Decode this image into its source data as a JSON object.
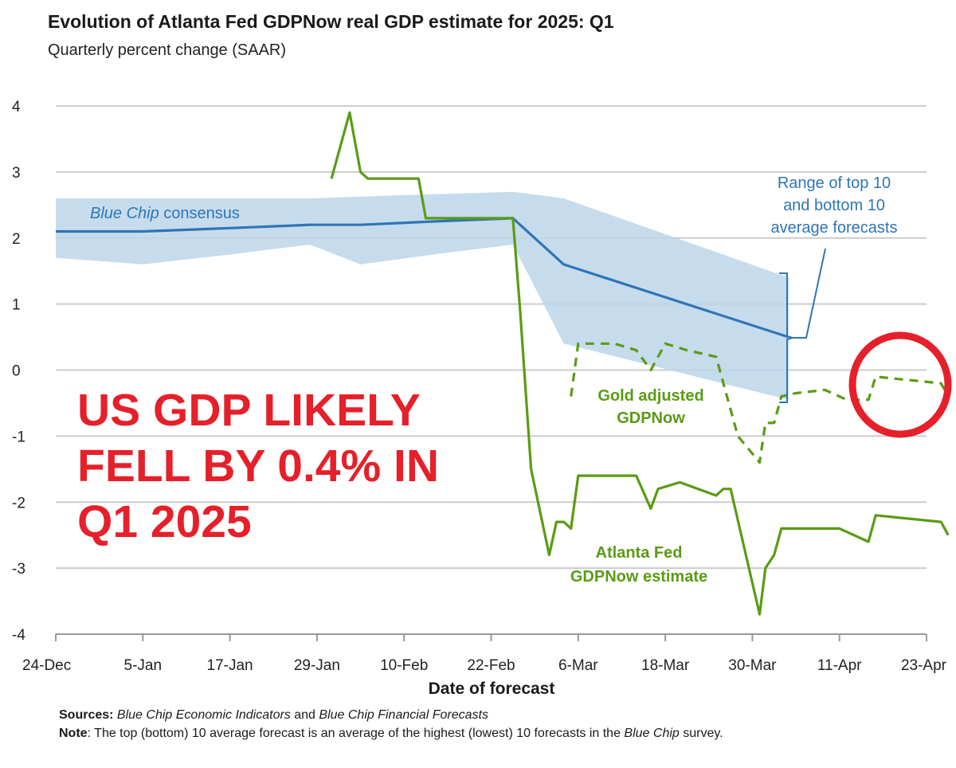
{
  "colors": {
    "consensus": "#2e75b6",
    "range": "#bcd6ea",
    "gdpnow": "#5a9b15",
    "gold": "#5a9b15",
    "headline": "#e5202a",
    "circle": "#e5202a",
    "grid": "#cccccc"
  },
  "header": {
    "title": "Evolution of Atlanta Fed GDPNow real GDP estimate for 2025: Q1",
    "subtitle": "Quarterly percent change (SAAR)"
  },
  "headline": {
    "line1": "US GDP LIKELY",
    "line2": "FELL BY 0.4% IN",
    "line3": "Q1 2025"
  },
  "footer": {
    "sources_label": "Sources:",
    "sources_text1": "Blue Chip Economic Indicators",
    "sources_and": " and ",
    "sources_text2": "Blue Chip Financial Forecasts",
    "note_label": "Note",
    "note_text": ": The top (bottom) 10 average forecast is an average of the highest (lowest) 10 forecasts in the ",
    "note_italic": "Blue Chip",
    "note_end": " survey."
  },
  "chart_data": {
    "type": "line",
    "xlabel": "Date of forecast",
    "ylabel": "Quarterly percent change (SAAR)",
    "ylim": [
      -4,
      4
    ],
    "xlim": [
      0,
      120
    ],
    "x_unit": "days since 24-Dec",
    "yticks": [
      4,
      3,
      2,
      1,
      0,
      -1,
      -2,
      -3,
      -4
    ],
    "yticklabels": [
      "4",
      "3",
      "2",
      "1",
      "0",
      "-1",
      "-2",
      "-3",
      "-4"
    ],
    "xticks": [
      0,
      12,
      24,
      36,
      48,
      60,
      72,
      84,
      96,
      108,
      120
    ],
    "xticklabels": [
      "24-Dec",
      "5-Jan",
      "17-Jan",
      "29-Jan",
      "10-Feb",
      "22-Feb",
      "6-Mar",
      "18-Mar",
      "30-Mar",
      "11-Apr",
      "23-Apr"
    ],
    "grid": true,
    "annotations": {
      "consensus_label_italic": "Blue Chip",
      "consensus_label_rest": " consensus",
      "range_line1": "Range of top 10",
      "range_line2": "and bottom 10",
      "range_line3": "average forecasts",
      "gold_line1": "Gold adjusted",
      "gold_line2": "GDPNow",
      "atl_line1": "Atlanta Fed",
      "atl_line2": "GDPNow estimate"
    },
    "series": [
      {
        "name": "Blue Chip consensus",
        "style": "solid",
        "x": [
          0,
          12,
          24,
          35,
          42,
          52,
          63,
          70,
          101
        ],
        "y": [
          2.1,
          2.1,
          2.15,
          2.2,
          2.2,
          2.25,
          2.3,
          1.6,
          0.5
        ]
      },
      {
        "name": "Range top 10 average",
        "style": "band-upper",
        "x": [
          0,
          12,
          24,
          35,
          48,
          63,
          70,
          101
        ],
        "y": [
          2.6,
          2.6,
          2.6,
          2.6,
          2.65,
          2.7,
          2.6,
          1.4
        ]
      },
      {
        "name": "Range bottom 10 average",
        "style": "band-lower",
        "x": [
          0,
          12,
          24,
          35,
          42,
          52,
          63,
          70,
          101
        ],
        "y": [
          1.7,
          1.6,
          1.75,
          1.9,
          1.6,
          1.75,
          1.9,
          0.4,
          -0.45
        ]
      },
      {
        "name": "Atlanta Fed GDPNow estimate",
        "style": "solid",
        "x": [
          38,
          40.5,
          42,
          43,
          48,
          50,
          51,
          55,
          63,
          64,
          65.5,
          68,
          69,
          70,
          71,
          72,
          80,
          82,
          83,
          86,
          91,
          92,
          93,
          97,
          97.8,
          99,
          100,
          108,
          112,
          113,
          122,
          123
        ],
        "y": [
          2.9,
          3.9,
          3.0,
          2.9,
          2.9,
          2.9,
          2.3,
          2.3,
          2.3,
          0.9,
          -1.5,
          -2.8,
          -2.3,
          -2.3,
          -2.4,
          -1.6,
          -1.6,
          -2.1,
          -1.8,
          -1.7,
          -1.9,
          -1.8,
          -1.8,
          -3.7,
          -3.0,
          -2.8,
          -2.4,
          -2.4,
          -2.6,
          -2.2,
          -2.3,
          -2.5
        ]
      },
      {
        "name": "Gold adjusted GDPNow",
        "style": "dashed",
        "x": [
          71,
          72,
          77,
          80,
          82,
          84,
          87,
          91,
          94,
          97,
          97.8,
          99,
          100,
          102,
          106,
          109,
          112,
          113,
          122,
          123
        ],
        "y": [
          -0.4,
          0.4,
          0.4,
          0.3,
          0.0,
          0.4,
          0.3,
          0.2,
          -1.0,
          -1.4,
          -0.8,
          -0.8,
          -0.4,
          -0.35,
          -0.3,
          -0.45,
          -0.45,
          -0.1,
          -0.2,
          -0.4
        ]
      }
    ]
  }
}
